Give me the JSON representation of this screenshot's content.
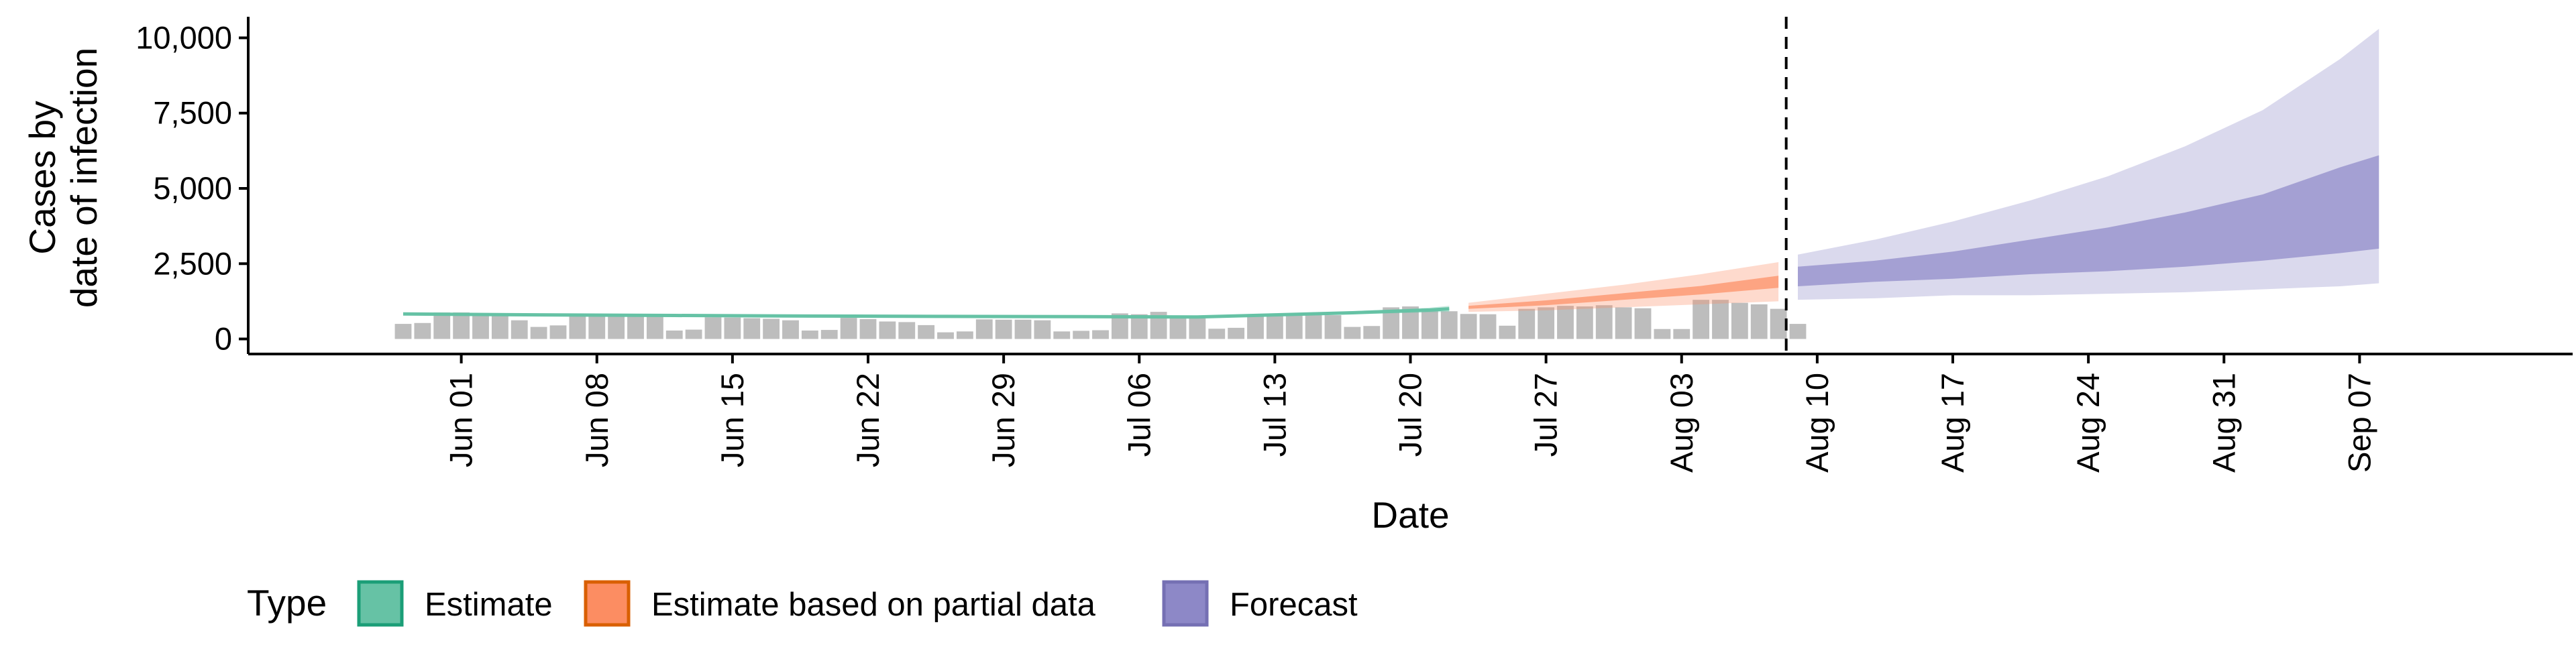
{
  "chart_data": {
    "type": "bar+line+area",
    "xlabel": "Date",
    "ylabel_lines": [
      "Cases by",
      "date of infection"
    ],
    "x_tick_labels": [
      "Jun 01",
      "Jun 08",
      "Jun 15",
      "Jun 22",
      "Jun 29",
      "Jul 06",
      "Jul 13",
      "Jul 20",
      "Jul 27",
      "Aug 03",
      "Aug 10",
      "Aug 17",
      "Aug 24",
      "Aug 31",
      "Sep 07"
    ],
    "x_tick_dates": [
      "2020-06-01",
      "2020-06-08",
      "2020-06-15",
      "2020-06-22",
      "2020-06-29",
      "2020-07-06",
      "2020-07-13",
      "2020-07-20",
      "2020-07-27",
      "2020-08-03",
      "2020-08-10",
      "2020-08-17",
      "2020-08-24",
      "2020-08-31",
      "2020-09-07"
    ],
    "xlim": [
      "2020-05-21",
      "2020-09-18"
    ],
    "y_tick_values": [
      0,
      2500,
      5000,
      7500,
      10000
    ],
    "y_tick_labels": [
      "0",
      "2,500",
      "5,000",
      "7,500",
      "10,000"
    ],
    "ylim": [
      -500,
      10700
    ],
    "forecast_start_marker": "2020-08-08",
    "observed_cases": {
      "start_date": "2020-05-29",
      "values": [
        500,
        530,
        880,
        880,
        860,
        830,
        620,
        400,
        450,
        840,
        830,
        800,
        770,
        750,
        280,
        310,
        720,
        710,
        690,
        670,
        620,
        280,
        300,
        700,
        660,
        580,
        560,
        460,
        220,
        250,
        650,
        640,
        640,
        620,
        250,
        270,
        290,
        850,
        820,
        900,
        780,
        680,
        340,
        370,
        780,
        820,
        850,
        860,
        790,
        400,
        430,
        1050,
        1080,
        1010,
        920,
        830,
        820,
        440,
        1000,
        1050,
        1100,
        1080,
        1120,
        1050,
        1020,
        330,
        330,
        1300,
        1300,
        1200,
        1150,
        1000,
        500
      ]
    },
    "series": [
      {
        "name": "Estimate",
        "color": "#1b9e77",
        "fill_color": "#66c2a5",
        "x": [
          "2020-05-29",
          "2020-06-05",
          "2020-06-12",
          "2020-06-19",
          "2020-06-26",
          "2020-07-03",
          "2020-07-09",
          "2020-07-13",
          "2020-07-17",
          "2020-07-21",
          "2020-07-22"
        ],
        "median": [
          830,
          800,
          780,
          760,
          750,
          740,
          730,
          800,
          870,
          960,
          1000
        ],
        "lower_90": [
          810,
          780,
          760,
          740,
          720,
          710,
          700,
          760,
          820,
          880,
          900
        ],
        "upper_90": [
          850,
          820,
          800,
          780,
          770,
          770,
          770,
          840,
          920,
          1040,
          1100
        ],
        "lower_50": [
          820,
          790,
          770,
          750,
          735,
          725,
          715,
          780,
          845,
          920,
          950
        ],
        "upper_50": [
          840,
          810,
          790,
          770,
          760,
          755,
          745,
          820,
          895,
          1000,
          1050
        ]
      },
      {
        "name": "Estimate based on partial data",
        "color": "#d95f02",
        "fill_color": "#fc8d62",
        "x": [
          "2020-07-23",
          "2020-07-27",
          "2020-07-31",
          "2020-08-04",
          "2020-08-08"
        ],
        "median": [
          1050,
          1200,
          1400,
          1600,
          1900
        ],
        "lower_90": [
          900,
          950,
          1050,
          1150,
          1250
        ],
        "upper_90": [
          1200,
          1500,
          1800,
          2150,
          2550
        ],
        "lower_50": [
          1000,
          1120,
          1300,
          1480,
          1700
        ],
        "upper_50": [
          1100,
          1280,
          1520,
          1760,
          2100
        ]
      },
      {
        "name": "Forecast",
        "color": "#7570b3",
        "fill_color": "#8d88c7",
        "x": [
          "2020-08-09",
          "2020-08-13",
          "2020-08-17",
          "2020-08-21",
          "2020-08-25",
          "2020-08-29",
          "2020-09-02",
          "2020-09-06",
          "2020-09-08"
        ],
        "median": [
          2050,
          2200,
          2400,
          2600,
          2750,
          3000,
          3300,
          3700,
          3900
        ],
        "lower_90": [
          1300,
          1350,
          1450,
          1450,
          1500,
          1550,
          1650,
          1750,
          1850
        ],
        "upper_90": [
          2800,
          3300,
          3900,
          4600,
          5400,
          6400,
          7600,
          9300,
          10300
        ],
        "lower_50": [
          1750,
          1900,
          2000,
          2150,
          2250,
          2400,
          2600,
          2850,
          3000
        ],
        "upper_50": [
          2400,
          2600,
          2900,
          3300,
          3700,
          4200,
          4800,
          5700,
          6100
        ]
      }
    ],
    "legend": {
      "title": "Type",
      "placement": "bottom-left",
      "entries": [
        {
          "label": "Estimate",
          "fill": "#66c2a5",
          "stroke": "#1b9e77"
        },
        {
          "label": "Estimate based on partial data",
          "fill": "#fc8d62",
          "stroke": "#d95f02"
        },
        {
          "label": "Forecast",
          "fill": "#8d88c7",
          "stroke": "#7570b3"
        }
      ]
    },
    "bar_color": "#bdbdbd",
    "grid": false
  }
}
